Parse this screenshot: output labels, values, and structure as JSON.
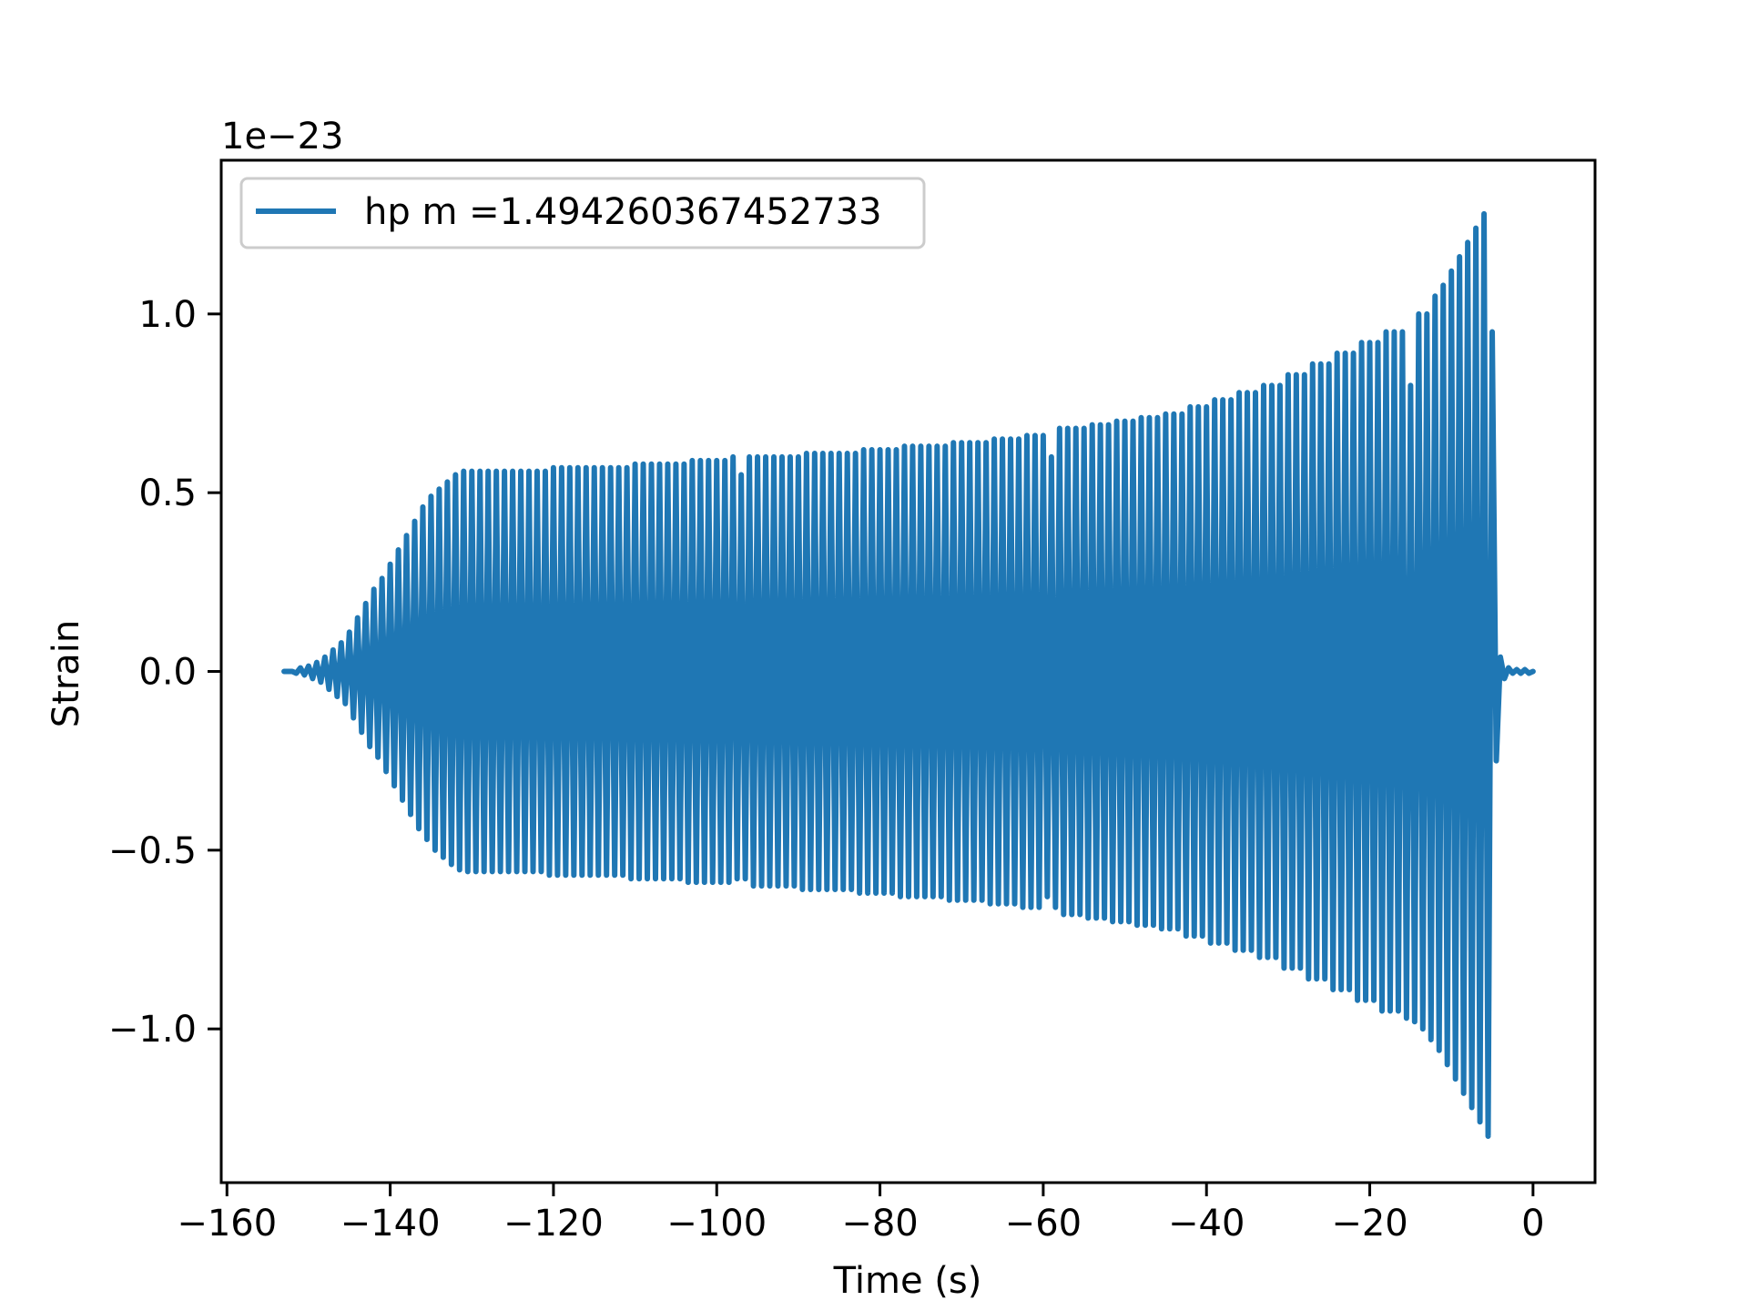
{
  "chart_data": {
    "type": "line",
    "xlabel": "Time (s)",
    "ylabel": "Strain",
    "offset_text": "1e−23",
    "xlim": [
      -160.7,
      7.6
    ],
    "ylim": [
      -1.43,
      1.43
    ],
    "xticks": [
      {
        "value": -160,
        "label": "−160"
      },
      {
        "value": -140,
        "label": "−140"
      },
      {
        "value": -120,
        "label": "−120"
      },
      {
        "value": -100,
        "label": "−100"
      },
      {
        "value": -80,
        "label": "−80"
      },
      {
        "value": -60,
        "label": "−60"
      },
      {
        "value": -40,
        "label": "−40"
      },
      {
        "value": -20,
        "label": "−20"
      },
      0
    ],
    "yticks": [
      {
        "value": -1.0,
        "label": "−1.0"
      },
      {
        "value": -0.5,
        "label": "−0.5"
      },
      {
        "value": 0.0,
        "label": "0.0"
      },
      {
        "value": 0.5,
        "label": "0.5"
      },
      {
        "value": 1.0,
        "label": "1.0"
      }
    ],
    "grid": false,
    "legend": "upper left",
    "x": [
      -153,
      -152.5,
      -152,
      -151.5,
      -151,
      -150.5,
      -150,
      -149.5,
      -149,
      -148.5,
      -148,
      -147.5,
      -147,
      -146.5,
      -146,
      -145.5,
      -145,
      -144.5,
      -144,
      -143.5,
      -143,
      -142.5,
      -142,
      -141.5,
      -141,
      -140.5,
      -140,
      -139.5,
      -139,
      -138.5,
      -138,
      -137.5,
      -137,
      -136.5,
      -136,
      -135.5,
      -135,
      -134.5,
      -134,
      -133.5,
      -133,
      -132.5,
      -132,
      -131.5,
      -131,
      -130.5,
      -130,
      -129.5,
      -129,
      -128.5,
      -128,
      -127.5,
      -127,
      -126.5,
      -126,
      -125.5,
      -125,
      -124.5,
      -124,
      -123.5,
      -123,
      -122.5,
      -122,
      -121.5,
      -121,
      -120.5,
      -120,
      -119.5,
      -119,
      -118.5,
      -118,
      -117.5,
      -117,
      -116.5,
      -116,
      -115.5,
      -115,
      -114.5,
      -114,
      -113.5,
      -113,
      -112.5,
      -112,
      -111.5,
      -111,
      -110.5,
      -110,
      -109.5,
      -109,
      -108.5,
      -108,
      -107.5,
      -107,
      -106.5,
      -106,
      -105.5,
      -105,
      -104.5,
      -104,
      -103.5,
      -103,
      -102.5,
      -102,
      -101.5,
      -101,
      -100.5,
      -100,
      -99.5,
      -99,
      -98.5,
      -98,
      -97.5,
      -97,
      -96.5,
      -96,
      -95.5,
      -95,
      -94.5,
      -94,
      -93.5,
      -93,
      -92.5,
      -92,
      -91.5,
      -91,
      -90.5,
      -90,
      -89.5,
      -89,
      -88.5,
      -88,
      -87.5,
      -87,
      -86.5,
      -86,
      -85.5,
      -85,
      -84.5,
      -84,
      -83.5,
      -83,
      -82.5,
      -82,
      -81.5,
      -81,
      -80.5,
      -80,
      -79.5,
      -79,
      -78.5,
      -78,
      -77.5,
      -77,
      -76.5,
      -76,
      -75.5,
      -75,
      -74.5,
      -74,
      -73.5,
      -73,
      -72.5,
      -72,
      -71.5,
      -71,
      -70.5,
      -70,
      -69.5,
      -69,
      -68.5,
      -68,
      -67.5,
      -67,
      -66.5,
      -66,
      -65.5,
      -65,
      -64.5,
      -64,
      -63.5,
      -63,
      -62.5,
      -62,
      -61.5,
      -61,
      -60.5,
      -60,
      -59.5,
      -59,
      -58.5,
      -58,
      -57.5,
      -57,
      -56.5,
      -56,
      -55.5,
      -55,
      -54.5,
      -54,
      -53.5,
      -53,
      -52.5,
      -52,
      -51.5,
      -51,
      -50.5,
      -50,
      -49.5,
      -49,
      -48.5,
      -48,
      -47.5,
      -47,
      -46.5,
      -46,
      -45.5,
      -45,
      -44.5,
      -44,
      -43.5,
      -43,
      -42.5,
      -42,
      -41.5,
      -41,
      -40.5,
      -40,
      -39.5,
      -39,
      -38.5,
      -38,
      -37.5,
      -37,
      -36.5,
      -36,
      -35.5,
      -35,
      -34.5,
      -34,
      -33.5,
      -33,
      -32.5,
      -32,
      -31.5,
      -31,
      -30.5,
      -30,
      -29.5,
      -29,
      -28.5,
      -28,
      -27.5,
      -27,
      -26.5,
      -26,
      -25.5,
      -25,
      -24.5,
      -24,
      -23.5,
      -23,
      -22.5,
      -22,
      -21.5,
      -21,
      -20.5,
      -20,
      -19.5,
      -19,
      -18.5,
      -18,
      -17.5,
      -17,
      -16.5,
      -16,
      -15.5,
      -15,
      -14.5,
      -14,
      -13.5,
      -13,
      -12.5,
      -12,
      -11.5,
      -11,
      -10.5,
      -10,
      -9.5,
      -9,
      -8.5,
      -8,
      -7.5,
      -7,
      -6.5,
      -6,
      -5.5,
      -5,
      -4.5,
      -4,
      -3.5,
      -3,
      -2.5,
      -2,
      -1.5,
      -1,
      -0.5,
      0
    ],
    "series": [
      {
        "name": "hp m =1.494260367452733",
        "color": "#1f77b4",
        "values": [
          0,
          0,
          0,
          -0.005,
          0.01,
          -0.01,
          0.015,
          -0.02,
          0.025,
          -0.03,
          0.04,
          -0.05,
          0.06,
          -0.07,
          0.08,
          -0.09,
          0.11,
          -0.13,
          0.15,
          -0.17,
          0.19,
          -0.21,
          0.23,
          -0.24,
          0.26,
          -0.28,
          0.3,
          -0.32,
          0.34,
          -0.36,
          0.38,
          -0.4,
          0.42,
          -0.44,
          0.46,
          -0.47,
          0.49,
          -0.5,
          0.51,
          -0.52,
          0.53,
          -0.54,
          0.55,
          -0.555,
          0.56,
          -0.56,
          0.56,
          -0.56,
          0.56,
          -0.56,
          0.56,
          -0.56,
          0.56,
          -0.56,
          0.56,
          -0.56,
          0.56,
          -0.56,
          0.56,
          -0.56,
          0.56,
          -0.56,
          0.56,
          -0.56,
          0.56,
          -0.57,
          0.57,
          -0.57,
          0.57,
          -0.57,
          0.57,
          -0.57,
          0.57,
          -0.57,
          0.57,
          -0.57,
          0.57,
          -0.57,
          0.57,
          -0.57,
          0.57,
          -0.57,
          0.57,
          -0.57,
          0.57,
          -0.58,
          0.58,
          -0.58,
          0.58,
          -0.58,
          0.58,
          -0.58,
          0.58,
          -0.58,
          0.58,
          -0.58,
          0.58,
          -0.58,
          0.58,
          -0.59,
          0.59,
          -0.59,
          0.59,
          -0.59,
          0.59,
          -0.59,
          0.59,
          -0.59,
          0.59,
          -0.59,
          0.6,
          -0.58,
          0.55,
          -0.58,
          0.6,
          -0.6,
          0.6,
          -0.6,
          0.6,
          -0.6,
          0.6,
          -0.6,
          0.6,
          -0.6,
          0.6,
          -0.6,
          0.6,
          -0.61,
          0.61,
          -0.61,
          0.61,
          -0.61,
          0.61,
          -0.61,
          0.61,
          -0.61,
          0.61,
          -0.61,
          0.61,
          -0.61,
          0.61,
          -0.62,
          0.62,
          -0.62,
          0.62,
          -0.62,
          0.62,
          -0.62,
          0.62,
          -0.62,
          0.62,
          -0.63,
          0.63,
          -0.63,
          0.63,
          -0.63,
          0.63,
          -0.63,
          0.63,
          -0.63,
          0.63,
          -0.63,
          0.63,
          -0.64,
          0.64,
          -0.64,
          0.64,
          -0.64,
          0.64,
          -0.64,
          0.64,
          -0.64,
          0.64,
          -0.65,
          0.65,
          -0.65,
          0.65,
          -0.65,
          0.65,
          -0.65,
          0.65,
          -0.66,
          0.66,
          -0.66,
          0.66,
          -0.66,
          0.66,
          -0.63,
          0.6,
          -0.66,
          0.68,
          -0.68,
          0.68,
          -0.68,
          0.68,
          -0.68,
          0.68,
          -0.69,
          0.69,
          -0.69,
          0.69,
          -0.69,
          0.69,
          -0.7,
          0.7,
          -0.7,
          0.7,
          -0.7,
          0.7,
          -0.71,
          0.71,
          -0.71,
          0.71,
          -0.71,
          0.71,
          -0.72,
          0.72,
          -0.72,
          0.72,
          -0.72,
          0.72,
          -0.74,
          0.74,
          -0.74,
          0.74,
          -0.74,
          0.74,
          -0.76,
          0.76,
          -0.76,
          0.76,
          -0.76,
          0.76,
          -0.78,
          0.78,
          -0.78,
          0.78,
          -0.78,
          0.78,
          -0.8,
          0.8,
          -0.8,
          0.8,
          -0.8,
          0.8,
          -0.83,
          0.83,
          -0.83,
          0.83,
          -0.83,
          0.83,
          -0.86,
          0.86,
          -0.86,
          0.86,
          -0.86,
          0.86,
          -0.89,
          0.89,
          -0.89,
          0.89,
          -0.89,
          0.89,
          -0.92,
          0.92,
          -0.92,
          0.92,
          -0.92,
          0.92,
          -0.95,
          0.95,
          -0.95,
          0.95,
          -0.95,
          0.95,
          -0.97,
          0.8,
          -0.98,
          1.0,
          -1.0,
          1.0,
          -1.03,
          1.05,
          -1.06,
          1.08,
          -1.1,
          1.12,
          -1.14,
          1.16,
          -1.18,
          1.2,
          -1.22,
          1.24,
          -1.26,
          1.28,
          -1.3,
          0.95,
          -0.25,
          0.04,
          -0.02,
          0.01,
          -0.005,
          0.005,
          -0.005,
          0.005,
          -0.005,
          0
        ]
      }
    ]
  }
}
